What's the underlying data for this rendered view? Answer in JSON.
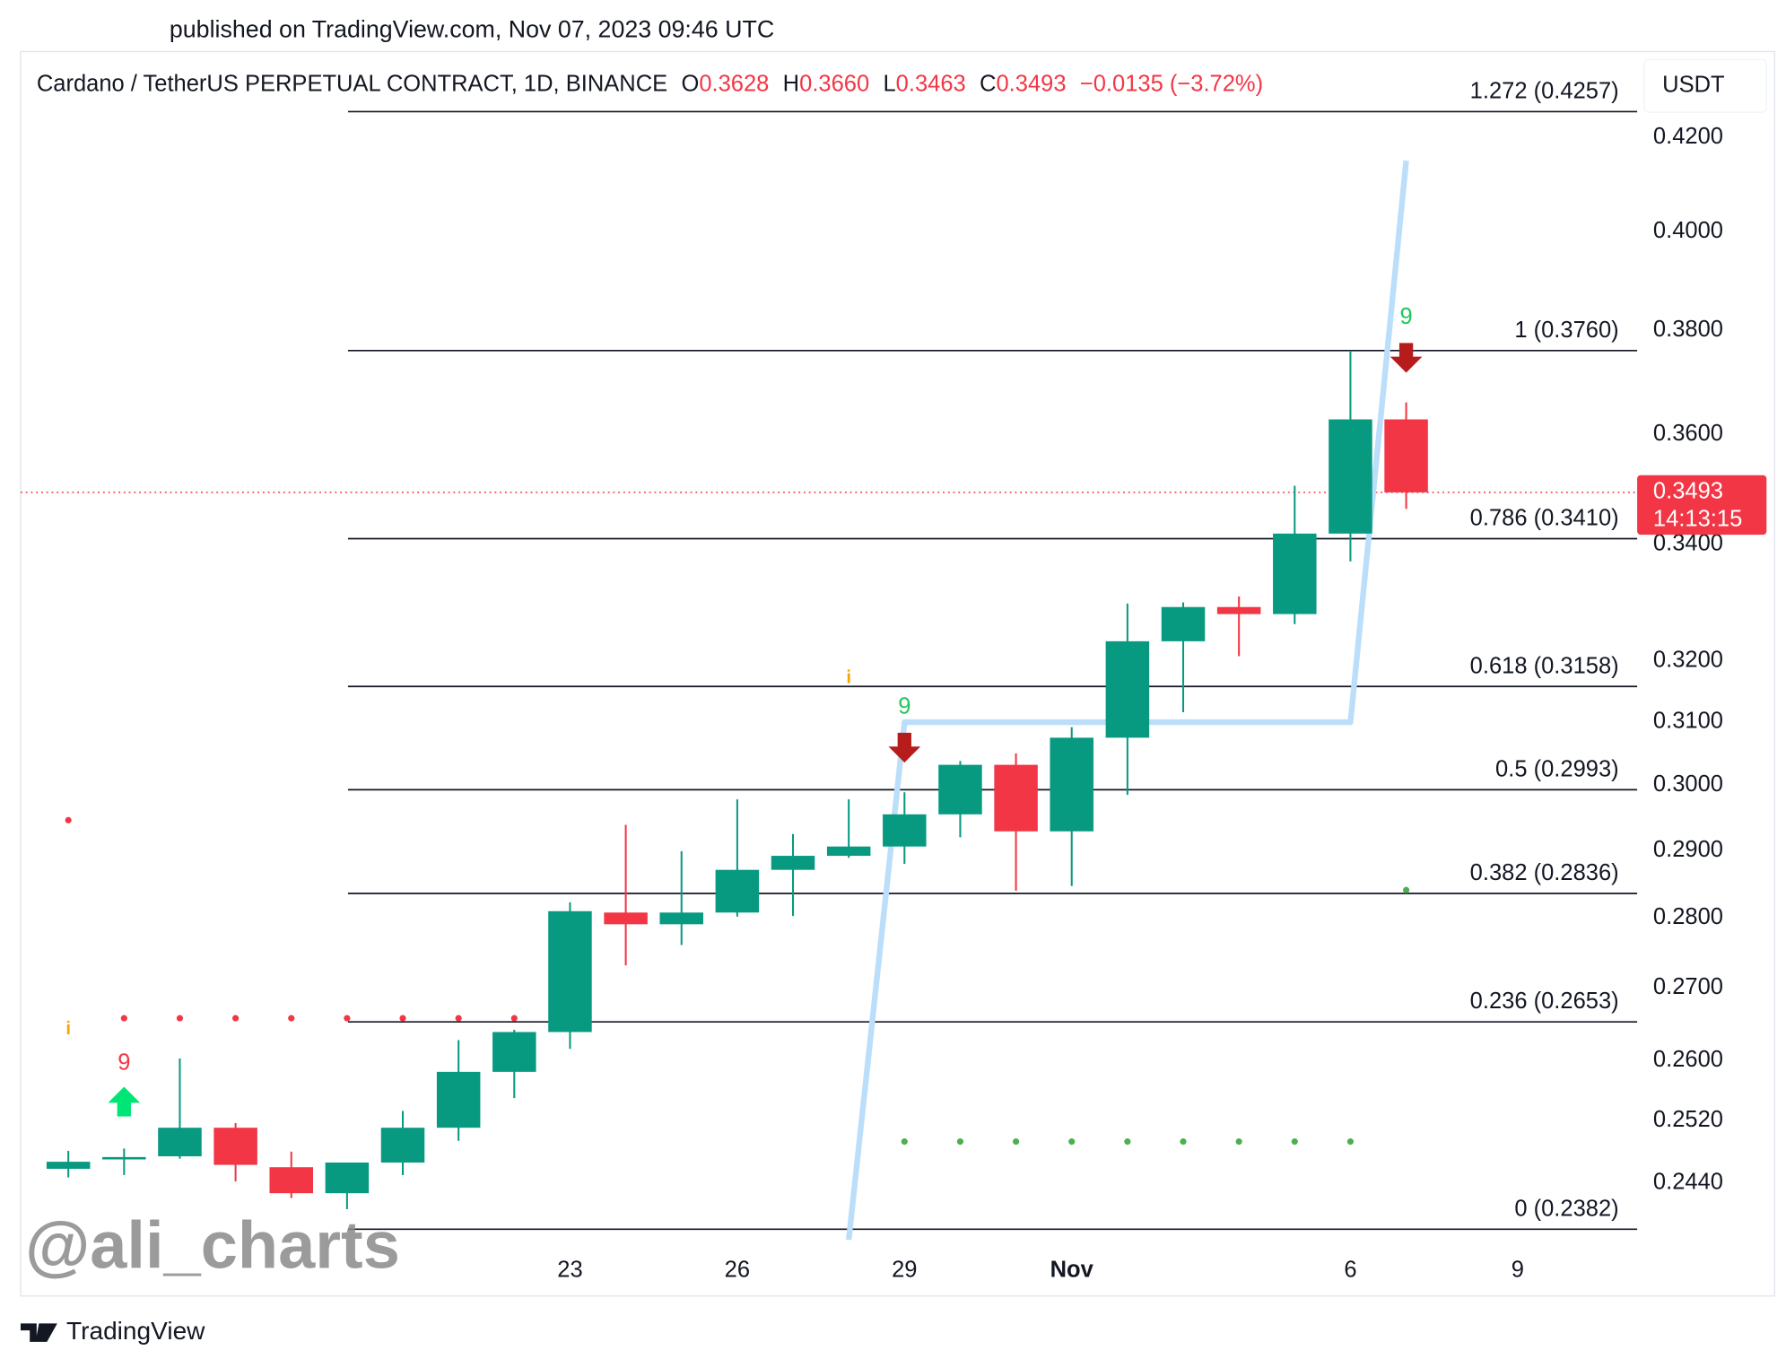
{
  "published": "published on TradingView.com, Nov 07, 2023 09:46 UTC",
  "header": {
    "title": "Cardano / TetherUS PERPETUAL CONTRACT, 1D, BINANCE",
    "ohlc": [
      {
        "key": "O",
        "value": "0.3628"
      },
      {
        "key": "H",
        "value": "0.3660"
      },
      {
        "key": "L",
        "value": "0.3463"
      },
      {
        "key": "C",
        "value": "0.3493"
      }
    ],
    "change": "−0.0135 (−3.72%)"
  },
  "currency": "USDT",
  "watermark": "@ali_charts",
  "brand": "TradingView",
  "chart_data": {
    "type": "candlestick",
    "x": [
      "2023-10-14",
      "2023-10-15",
      "2023-10-16",
      "2023-10-17",
      "2023-10-18",
      "2023-10-19",
      "2023-10-20",
      "2023-10-21",
      "2023-10-22",
      "2023-10-23",
      "2023-10-24",
      "2023-10-25",
      "2023-10-26",
      "2023-10-27",
      "2023-10-28",
      "2023-10-29",
      "2023-10-30",
      "2023-10-31",
      "2023-11-01",
      "2023-11-02",
      "2023-11-03",
      "2023-11-04",
      "2023-11-05",
      "2023-11-06",
      "2023-11-07"
    ],
    "open": [
      0.2458,
      0.247,
      0.2474,
      0.2511,
      0.246,
      0.2427,
      0.2466,
      0.2511,
      0.2585,
      0.2639,
      0.2808,
      0.2791,
      0.2808,
      0.2871,
      0.2892,
      0.2906,
      0.2955,
      0.3032,
      0.2929,
      0.3075,
      0.3233,
      0.3291,
      0.3279,
      0.3419,
      0.3628
    ],
    "high": [
      0.2481,
      0.2484,
      0.2603,
      0.2517,
      0.248,
      0.2466,
      0.2533,
      0.2628,
      0.2642,
      0.2823,
      0.2939,
      0.2899,
      0.2978,
      0.2925,
      0.2978,
      0.2989,
      0.3038,
      0.305,
      0.3092,
      0.3297,
      0.3299,
      0.3309,
      0.3505,
      0.376,
      0.366
    ],
    "low": [
      0.2447,
      0.245,
      0.2471,
      0.2442,
      0.2421,
      0.2407,
      0.245,
      0.2494,
      0.255,
      0.2616,
      0.2732,
      0.2761,
      0.2802,
      0.2803,
      0.2889,
      0.288,
      0.292,
      0.284,
      0.2847,
      0.2985,
      0.3116,
      0.3208,
      0.3262,
      0.337,
      0.3463
    ],
    "close": [
      0.2467,
      0.2473,
      0.2511,
      0.2463,
      0.2427,
      0.2466,
      0.2511,
      0.2585,
      0.2639,
      0.281,
      0.2791,
      0.2808,
      0.2871,
      0.2892,
      0.2906,
      0.2955,
      0.3032,
      0.2929,
      0.3075,
      0.3233,
      0.3291,
      0.3279,
      0.3419,
      0.3628,
      0.3493
    ],
    "up_color": "#089981",
    "down_color": "#f23645",
    "log_scale": true,
    "ylim": [
      0.2359,
      0.4392
    ],
    "yticks": [
      {
        "value": 0.42,
        "label": "0.4200"
      },
      {
        "value": 0.4,
        "label": "0.4000"
      },
      {
        "value": 0.38,
        "label": "0.3800"
      },
      {
        "value": 0.36,
        "label": "0.3600"
      },
      {
        "value": 0.34,
        "label": "0.3400"
      },
      {
        "value": 0.32,
        "label": "0.3200"
      },
      {
        "value": 0.31,
        "label": "0.3100"
      },
      {
        "value": 0.3,
        "label": "0.3000"
      },
      {
        "value": 0.29,
        "label": "0.2900"
      },
      {
        "value": 0.28,
        "label": "0.2800"
      },
      {
        "value": 0.27,
        "label": "0.2700"
      },
      {
        "value": 0.26,
        "label": "0.2600"
      },
      {
        "value": 0.252,
        "label": "0.2520"
      },
      {
        "value": 0.244,
        "label": "0.2440"
      }
    ],
    "xlim": [
      "2023-10-13",
      "2023-11-11"
    ],
    "xticks": [
      {
        "value": "2023-10-23",
        "label": "23"
      },
      {
        "value": "2023-10-26",
        "label": "26"
      },
      {
        "value": "2023-10-29",
        "label": "29"
      },
      {
        "value": "2023-11-01",
        "label": "Nov"
      },
      {
        "value": "2023-11-06",
        "label": "6"
      },
      {
        "value": "2023-11-09",
        "label": "9"
      }
    ],
    "grid": false,
    "fib_levels": [
      {
        "label": "1.272 (0.4257)",
        "value": 0.4257
      },
      {
        "label": "1 (0.3760)",
        "value": 0.376
      },
      {
        "label": "0.786 (0.3410)",
        "value": 0.341
      },
      {
        "label": "0.618 (0.3158)",
        "value": 0.3158
      },
      {
        "label": "0.5 (0.2993)",
        "value": 0.2993
      },
      {
        "label": "0.382 (0.2836)",
        "value": 0.2836
      },
      {
        "label": "0.236 (0.2653)",
        "value": 0.2653
      },
      {
        "label": "0 (0.2382)",
        "value": 0.2382
      }
    ],
    "last_price": {
      "label": "0.3493",
      "countdown": "14:13:15",
      "color": "#f23645"
    },
    "stops": [
      {
        "color": "#f23645",
        "values": [
          0.2946,
          0.2658,
          0.2658,
          0.2658,
          0.2658,
          0.2658,
          0.2658,
          0.2658,
          0.2658,
          null,
          null,
          null,
          null,
          null,
          null,
          null,
          null,
          null,
          null,
          null,
          null,
          null,
          null,
          null,
          null
        ]
      },
      {
        "color": "#4caf50",
        "values": [
          null,
          null,
          null,
          null,
          null,
          null,
          null,
          null,
          null,
          null,
          null,
          null,
          null,
          null,
          null,
          0.2493,
          0.2493,
          0.2493,
          0.2493,
          0.2493,
          0.2493,
          0.2493,
          0.2493,
          0.2493,
          0.2841
        ]
      }
    ],
    "trend": {
      "color": "#bbdefb",
      "values": [
        null,
        null,
        null,
        null,
        null,
        null,
        null,
        null,
        null,
        null,
        null,
        null,
        null,
        null,
        0.2369,
        0.31,
        0.31,
        0.31,
        0.31,
        0.31,
        0.31,
        0.31,
        0.31,
        0.31,
        0.415
      ]
    },
    "markers": [
      {
        "date": "2023-10-14",
        "text": "i",
        "color": "#f7a600"
      },
      {
        "date": "2023-10-15",
        "text": "9",
        "color": "#f23645",
        "arrow": "up",
        "arrow_color": "#00e676"
      },
      {
        "date": "2023-10-28",
        "text": "i",
        "color": "#f7a600"
      },
      {
        "date": "2023-10-29",
        "text": "9",
        "color": "#22c55e",
        "arrow": "down",
        "arrow_color": "#b71c1c"
      },
      {
        "date": "2023-11-07",
        "text": "9",
        "color": "#22c55e",
        "arrow": "down",
        "arrow_color": "#b71c1c"
      }
    ]
  }
}
